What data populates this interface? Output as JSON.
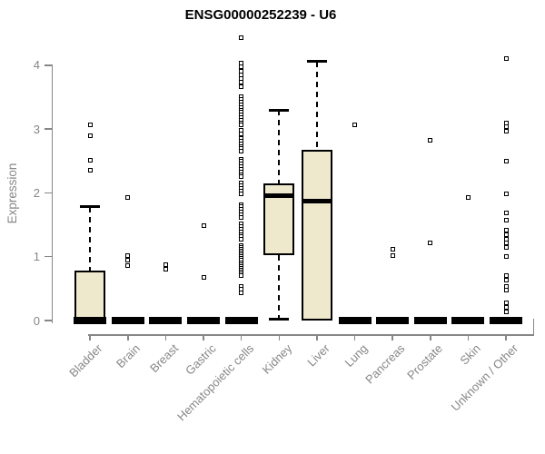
{
  "chart_data": {
    "type": "boxplot",
    "title": "ENSG00000252239 - U6",
    "ylabel": "Expression",
    "xlabel": "",
    "ylim": [
      0,
      4.5
    ],
    "yticks": [
      0,
      1,
      2,
      3,
      4
    ],
    "grid": false,
    "legend": "none",
    "box_fill_color": "#EEE8CD",
    "box_border_color": "#000000",
    "axis_color": "#878787",
    "categories": [
      "Bladder",
      "Brain",
      "Breast",
      "Gastric",
      "Hematopoietic cells",
      "Kidney",
      "Liver",
      "Lung",
      "Pancreas",
      "Prostate",
      "Skin",
      "Unknown / Other"
    ],
    "series": [
      {
        "name": "Bladder",
        "whisker_low": 0,
        "q1": 0,
        "median": 0,
        "q3": 0.78,
        "whisker_high": 1.78,
        "outliers": [
          2.35,
          2.51,
          2.9,
          3.06
        ]
      },
      {
        "name": "Brain",
        "whisker_low": 0,
        "q1": 0,
        "median": 0,
        "q3": 0,
        "whisker_high": 0,
        "outliers": [
          0.86,
          0.95,
          1.02,
          1.93
        ]
      },
      {
        "name": "Breast",
        "whisker_low": 0,
        "q1": 0,
        "median": 0,
        "q3": 0,
        "whisker_high": 0,
        "outliers": [
          0.8,
          0.87
        ]
      },
      {
        "name": "Gastric",
        "whisker_low": 0,
        "q1": 0,
        "median": 0,
        "q3": 0,
        "whisker_high": 0,
        "outliers": [
          0.67,
          1.49
        ]
      },
      {
        "name": "Hematopoietic cells",
        "whisker_low": 0,
        "q1": 0,
        "median": 0,
        "q3": 0,
        "whisker_high": 0,
        "outliers": [
          4.43,
          4.03,
          3.97,
          3.91,
          3.85,
          3.79,
          3.73,
          3.66,
          3.5,
          3.46,
          3.42,
          3.38,
          3.34,
          3.3,
          3.26,
          3.22,
          3.18,
          3.14,
          3.1,
          3.06,
          2.98,
          2.93,
          2.85,
          2.81,
          2.77,
          2.73,
          2.69,
          2.65,
          2.53,
          2.49,
          2.45,
          2.41,
          2.37,
          2.33,
          2.29,
          2.25,
          2.15,
          2.11,
          2.07,
          2.03,
          1.99,
          1.82,
          1.78,
          1.74,
          1.7,
          1.66,
          1.62,
          1.51,
          1.47,
          1.43,
          1.39,
          1.35,
          1.31,
          1.27,
          1.18,
          1.15,
          1.12,
          1.09,
          1.06,
          1.03,
          1.0,
          0.97,
          0.94,
          0.91,
          0.88,
          0.85,
          0.82,
          0.79,
          0.76,
          0.73,
          0.7,
          0.54,
          0.49,
          0.44
        ]
      },
      {
        "name": "Kidney",
        "whisker_low": 0.02,
        "q1": 1.02,
        "median": 1.95,
        "q3": 2.15,
        "whisker_high": 3.3,
        "outliers": []
      },
      {
        "name": "Liver",
        "whisker_low": 0,
        "q1": 0,
        "median": 1.87,
        "q3": 2.67,
        "whisker_high": 4.06,
        "outliers": []
      },
      {
        "name": "Lung",
        "whisker_low": 0,
        "q1": 0,
        "median": 0,
        "q3": 0,
        "whisker_high": 0,
        "outliers": [
          3.07
        ]
      },
      {
        "name": "Pancreas",
        "whisker_low": 0,
        "q1": 0,
        "median": 0,
        "q3": 0,
        "whisker_high": 0,
        "outliers": [
          1.01,
          1.11
        ]
      },
      {
        "name": "Prostate",
        "whisker_low": 0,
        "q1": 0,
        "median": 0,
        "q3": 0,
        "whisker_high": 0,
        "outliers": [
          1.22,
          2.82
        ]
      },
      {
        "name": "Skin",
        "whisker_low": 0,
        "q1": 0,
        "median": 0,
        "q3": 0,
        "whisker_high": 0,
        "outliers": [
          1.93
        ]
      },
      {
        "name": "Unknown / Other",
        "whisker_low": 0,
        "q1": 0,
        "median": 0,
        "q3": 0,
        "whisker_high": 0,
        "outliers": [
          0.14,
          0.21,
          0.28,
          0.47,
          0.54,
          0.64,
          0.71,
          1.0,
          1.14,
          1.22,
          1.28,
          1.35,
          1.42,
          1.57,
          1.69,
          1.99,
          2.49,
          2.97,
          3.03,
          3.09,
          4.1
        ]
      }
    ]
  }
}
